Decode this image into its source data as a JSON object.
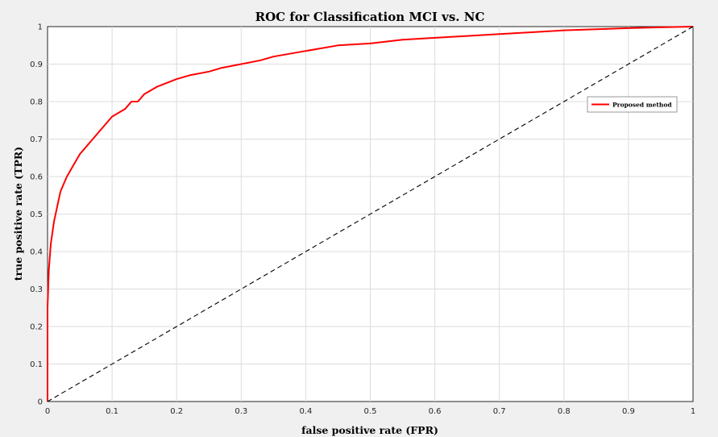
{
  "chart_data": {
    "type": "line",
    "title": "ROC for Classification MCI vs. NC",
    "xlabel": "false positive rate (FPR)",
    "ylabel": "true positive rate (TPR)",
    "xlim": [
      0,
      1
    ],
    "ylim": [
      0,
      1
    ],
    "xticks": [
      "0",
      "0.1",
      "0.2",
      "0.3",
      "0.4",
      "0.5",
      "0.6",
      "0.7",
      "0.8",
      "0.9",
      "1"
    ],
    "yticks": [
      "0",
      "0.1",
      "0.2",
      "0.3",
      "0.4",
      "0.5",
      "0.6",
      "0.7",
      "0.8",
      "0.9",
      "1"
    ],
    "grid": true,
    "legend": {
      "position": "top-right",
      "entries": [
        "Proposed method"
      ]
    },
    "series": [
      {
        "name": "Proposed method",
        "color": "#ff0000",
        "x": [
          0,
          0,
          0.002,
          0.005,
          0.01,
          0.015,
          0.02,
          0.03,
          0.04,
          0.05,
          0.06,
          0.07,
          0.08,
          0.09,
          0.1,
          0.11,
          0.12,
          0.13,
          0.14,
          0.15,
          0.17,
          0.2,
          0.22,
          0.25,
          0.27,
          0.3,
          0.33,
          0.35,
          0.4,
          0.45,
          0.5,
          0.55,
          0.6,
          0.65,
          0.7,
          0.75,
          0.8,
          0.85,
          0.9,
          0.95,
          1
        ],
        "y": [
          0,
          0.25,
          0.35,
          0.42,
          0.48,
          0.52,
          0.56,
          0.6,
          0.63,
          0.66,
          0.68,
          0.7,
          0.72,
          0.74,
          0.76,
          0.77,
          0.78,
          0.8,
          0.8,
          0.82,
          0.84,
          0.86,
          0.87,
          0.88,
          0.89,
          0.9,
          0.91,
          0.92,
          0.935,
          0.95,
          0.955,
          0.965,
          0.97,
          0.975,
          0.98,
          0.985,
          0.99,
          0.993,
          0.996,
          0.998,
          1
        ]
      },
      {
        "name": "",
        "color": "#000000",
        "style": "dashed",
        "x": [
          0,
          1
        ],
        "y": [
          0,
          1
        ]
      }
    ]
  }
}
